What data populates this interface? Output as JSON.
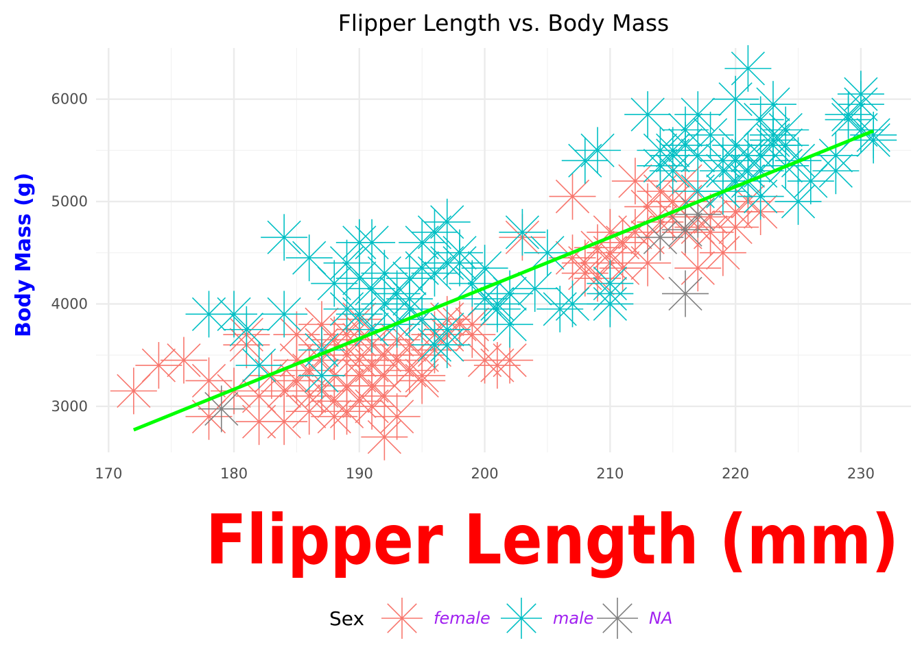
{
  "chart_data": {
    "type": "scatter",
    "title": "Flipper Length vs. Body Mass",
    "xlabel": "Flipper Length (mm)",
    "ylabel": "Body Mass (g)",
    "xlim": [
      169,
      234
    ],
    "ylim": [
      2550,
      6500
    ],
    "x_ticks": [
      170,
      180,
      190,
      200,
      210,
      220,
      230
    ],
    "y_ticks": [
      3000,
      4000,
      5000,
      6000
    ],
    "grid": true,
    "marker": "asterisk",
    "legend": {
      "title": "Sex",
      "position": "bottom",
      "entries": [
        {
          "label": "female",
          "color": "#F8766D"
        },
        {
          "label": "male",
          "color": "#00BFC4"
        },
        {
          "label": "NA",
          "color": "#7F7F7F"
        }
      ]
    },
    "trend_line": {
      "color": "#00FF00",
      "x": [
        172,
        231
      ],
      "y": [
        2770,
        5690
      ]
    },
    "series": [
      {
        "name": "female",
        "color": "#F8766D",
        "points": [
          [
            172,
            3150
          ],
          [
            174,
            3400
          ],
          [
            176,
            3450
          ],
          [
            178,
            3250
          ],
          [
            178,
            2900
          ],
          [
            180,
            3150
          ],
          [
            181,
            3700
          ],
          [
            181,
            3600
          ],
          [
            182,
            2850
          ],
          [
            182,
            3100
          ],
          [
            183,
            3300
          ],
          [
            184,
            2850
          ],
          [
            184,
            3150
          ],
          [
            185,
            3450
          ],
          [
            185,
            3700
          ],
          [
            185,
            3250
          ],
          [
            186,
            2950
          ],
          [
            186,
            3350
          ],
          [
            186,
            3100
          ],
          [
            187,
            3600
          ],
          [
            187,
            3450
          ],
          [
            187,
            3800
          ],
          [
            187,
            3150
          ],
          [
            188,
            3050
          ],
          [
            188,
            2900
          ],
          [
            188,
            3300
          ],
          [
            188,
            3650
          ],
          [
            189,
            3500
          ],
          [
            189,
            3700
          ],
          [
            189,
            3200
          ],
          [
            189,
            2950
          ],
          [
            190,
            3450
          ],
          [
            190,
            3650
          ],
          [
            190,
            3300
          ],
          [
            190,
            3750
          ],
          [
            190,
            3050
          ],
          [
            190,
            3850
          ],
          [
            191,
            3200
          ],
          [
            191,
            3400
          ],
          [
            191,
            3600
          ],
          [
            191,
            3000
          ],
          [
            192,
            3500
          ],
          [
            192,
            3300
          ],
          [
            192,
            2700
          ],
          [
            192,
            3100
          ],
          [
            193,
            3450
          ],
          [
            193,
            2900
          ],
          [
            193,
            3650
          ],
          [
            194,
            3600
          ],
          [
            194,
            3350
          ],
          [
            195,
            3250
          ],
          [
            195,
            3500
          ],
          [
            195,
            3300
          ],
          [
            195,
            3850
          ],
          [
            196,
            3550
          ],
          [
            196,
            3700
          ],
          [
            197,
            3700
          ],
          [
            197,
            3850
          ],
          [
            198,
            3800
          ],
          [
            199,
            3800
          ],
          [
            199,
            3700
          ],
          [
            200,
            3450
          ],
          [
            201,
            3400
          ],
          [
            202,
            3450
          ],
          [
            203,
            4650
          ],
          [
            207,
            5050
          ],
          [
            207,
            4450
          ],
          [
            208,
            4400
          ],
          [
            208,
            4300
          ],
          [
            209,
            4550
          ],
          [
            209,
            4250
          ],
          [
            210,
            4400
          ],
          [
            210,
            4500
          ],
          [
            210,
            4700
          ],
          [
            211,
            4600
          ],
          [
            211,
            4350
          ],
          [
            212,
            4700
          ],
          [
            212,
            5200
          ],
          [
            213,
            4650
          ],
          [
            213,
            4950
          ],
          [
            213,
            4400
          ],
          [
            214,
            4800
          ],
          [
            214,
            5100
          ],
          [
            215,
            5000
          ],
          [
            215,
            4850
          ],
          [
            216,
            4700
          ],
          [
            216,
            5000
          ],
          [
            216,
            5200
          ],
          [
            217,
            4350
          ],
          [
            217,
            4750
          ],
          [
            218,
            4700
          ],
          [
            218,
            4850
          ],
          [
            219,
            4500
          ],
          [
            220,
            4750
          ],
          [
            220,
            4900
          ],
          [
            221,
            5000
          ],
          [
            222,
            4900
          ]
        ]
      },
      {
        "name": "male",
        "color": "#00BFC4",
        "points": [
          [
            178,
            3900
          ],
          [
            180,
            3900
          ],
          [
            181,
            3750
          ],
          [
            182,
            3400
          ],
          [
            184,
            3900
          ],
          [
            184,
            4650
          ],
          [
            186,
            4450
          ],
          [
            187,
            3550
          ],
          [
            187,
            3300
          ],
          [
            188,
            4200
          ],
          [
            189,
            3950
          ],
          [
            189,
            4400
          ],
          [
            190,
            4600
          ],
          [
            190,
            4250
          ],
          [
            190,
            3900
          ],
          [
            191,
            4600
          ],
          [
            191,
            3750
          ],
          [
            191,
            4150
          ],
          [
            192,
            4000
          ],
          [
            192,
            4300
          ],
          [
            193,
            3800
          ],
          [
            193,
            4100
          ],
          [
            194,
            3950
          ],
          [
            194,
            4050
          ],
          [
            194,
            4250
          ],
          [
            195,
            4350
          ],
          [
            195,
            4600
          ],
          [
            195,
            3850
          ],
          [
            196,
            4300
          ],
          [
            196,
            4700
          ],
          [
            196,
            3600
          ],
          [
            197,
            4400
          ],
          [
            197,
            3750
          ],
          [
            197,
            4800
          ],
          [
            197,
            3600
          ],
          [
            198,
            4500
          ],
          [
            198,
            4400
          ],
          [
            199,
            4200
          ],
          [
            200,
            4050
          ],
          [
            200,
            4350
          ],
          [
            201,
            4000
          ],
          [
            201,
            3950
          ],
          [
            202,
            4100
          ],
          [
            202,
            3800
          ],
          [
            203,
            4700
          ],
          [
            204,
            4150
          ],
          [
            205,
            4500
          ],
          [
            206,
            3950
          ],
          [
            207,
            4000
          ],
          [
            208,
            5400
          ],
          [
            209,
            5500
          ],
          [
            210,
            4100
          ],
          [
            210,
            4000
          ],
          [
            210,
            4200
          ],
          [
            213,
            5850
          ],
          [
            214,
            5350
          ],
          [
            214,
            5500
          ],
          [
            215,
            5500
          ],
          [
            215,
            5450
          ],
          [
            215,
            5300
          ],
          [
            216,
            5700
          ],
          [
            216,
            5550
          ],
          [
            217,
            5850
          ],
          [
            217,
            5450
          ],
          [
            217,
            5100
          ],
          [
            218,
            5650
          ],
          [
            219,
            5300
          ],
          [
            219,
            5400
          ],
          [
            219,
            5100
          ],
          [
            220,
            5400
          ],
          [
            220,
            5200
          ],
          [
            220,
            6000
          ],
          [
            220,
            5550
          ],
          [
            221,
            5200
          ],
          [
            221,
            5300
          ],
          [
            221,
            5450
          ],
          [
            221,
            6300
          ],
          [
            222,
            5300
          ],
          [
            222,
            5450
          ],
          [
            222,
            5800
          ],
          [
            222,
            5050
          ],
          [
            223,
            5950
          ],
          [
            223,
            5650
          ],
          [
            223,
            5600
          ],
          [
            223,
            5550
          ],
          [
            224,
            5550
          ],
          [
            224,
            5350
          ],
          [
            224,
            5700
          ],
          [
            225,
            5400
          ],
          [
            225,
            5000
          ],
          [
            226,
            5200
          ],
          [
            228,
            5450
          ],
          [
            228,
            5300
          ],
          [
            229,
            5850
          ],
          [
            229,
            5800
          ],
          [
            230,
            6050
          ],
          [
            230,
            5700
          ],
          [
            230,
            5950
          ],
          [
            231,
            5600
          ],
          [
            231,
            5650
          ]
        ]
      },
      {
        "name": "NA",
        "color": "#7F7F7F",
        "points": [
          [
            179,
            2975
          ],
          [
            214,
            4650
          ],
          [
            216,
            4725
          ],
          [
            216,
            4100
          ],
          [
            217,
            4875
          ]
        ]
      }
    ]
  }
}
